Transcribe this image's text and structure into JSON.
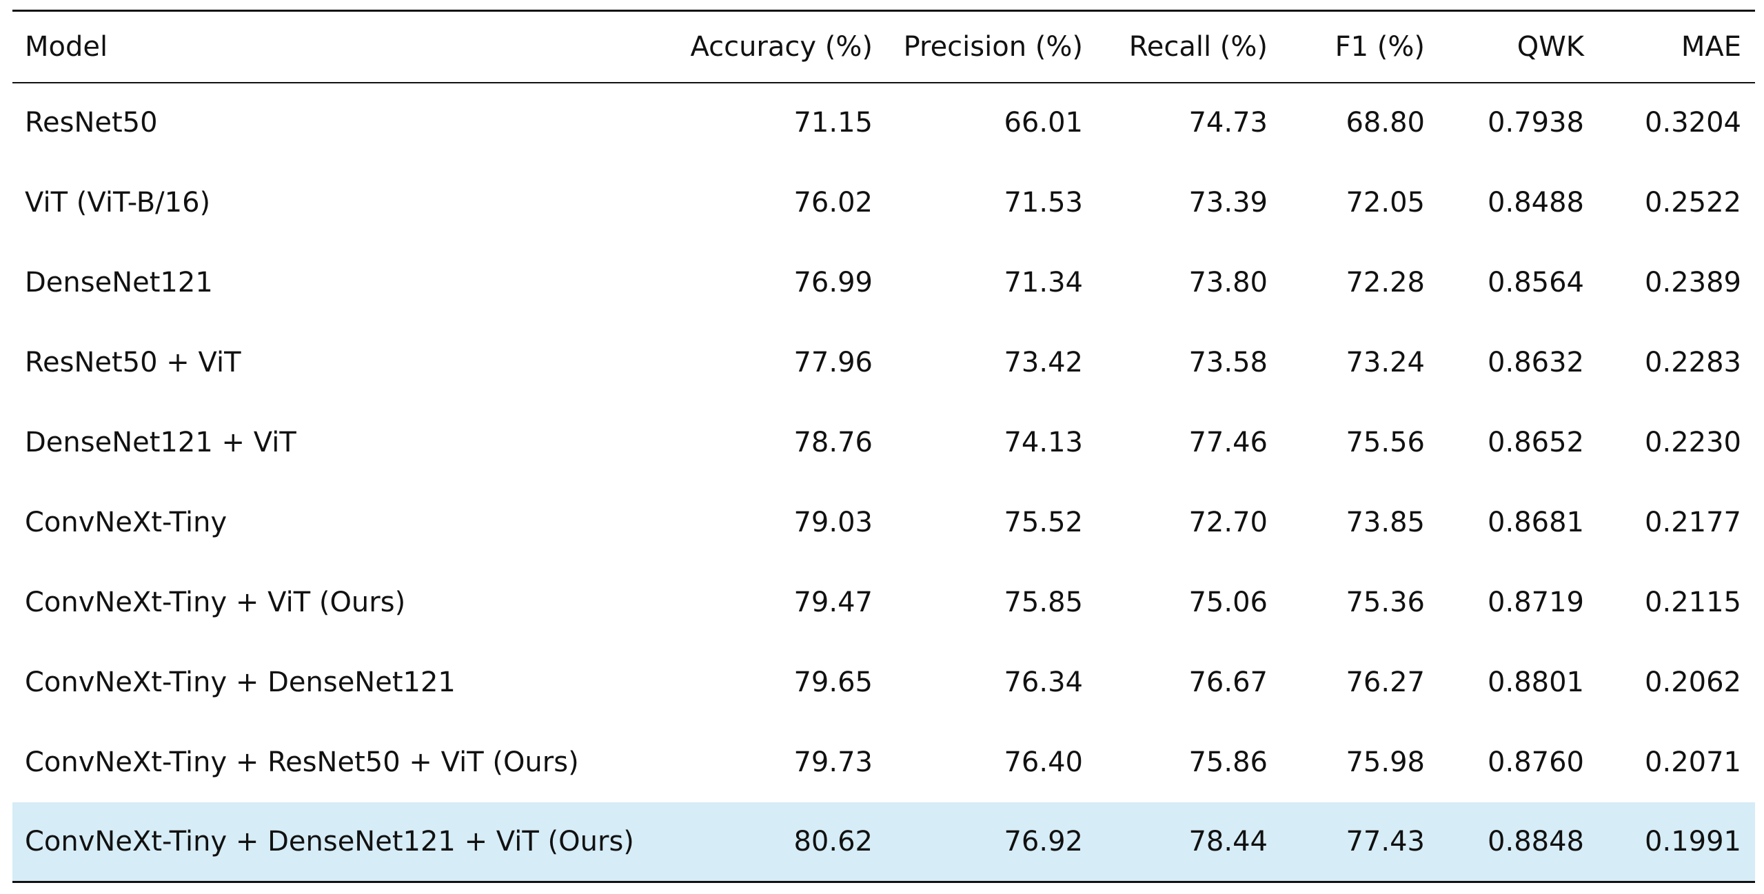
{
  "table": {
    "headers": [
      "Model",
      "Accuracy (%)",
      "Precision (%)",
      "Recall (%)",
      "F1 (%)",
      "QWK",
      "MAE"
    ],
    "rows": [
      [
        "ResNet50",
        "71.15",
        "66.01",
        "74.73",
        "68.80",
        "0.7938",
        "0.3204"
      ],
      [
        "ViT (ViT-B/16)",
        "76.02",
        "71.53",
        "73.39",
        "72.05",
        "0.8488",
        "0.2522"
      ],
      [
        "DenseNet121",
        "76.99",
        "71.34",
        "73.80",
        "72.28",
        "0.8564",
        "0.2389"
      ],
      [
        "ResNet50 + ViT",
        "77.96",
        "73.42",
        "73.58",
        "73.24",
        "0.8632",
        "0.2283"
      ],
      [
        "DenseNet121 + ViT",
        "78.76",
        "74.13",
        "77.46",
        "75.56",
        "0.8652",
        "0.2230"
      ],
      [
        "ConvNeXt-Tiny",
        "79.03",
        "75.52",
        "72.70",
        "73.85",
        "0.8681",
        "0.2177"
      ],
      [
        "ConvNeXt-Tiny + ViT (Ours)",
        "79.47",
        "75.85",
        "75.06",
        "75.36",
        "0.8719",
        "0.2115"
      ],
      [
        "ConvNeXt-Tiny + DenseNet121",
        "79.65",
        "76.34",
        "76.67",
        "76.27",
        "0.8801",
        "0.2062"
      ],
      [
        "ConvNeXt-Tiny + ResNet50 + ViT (Ours)",
        "79.73",
        "76.40",
        "75.86",
        "75.98",
        "0.8760",
        "0.2071"
      ],
      [
        "ConvNeXt-Tiny + DenseNet121 + ViT (Ours)",
        "80.62",
        "76.92",
        "78.44",
        "77.43",
        "0.8848",
        "0.1991"
      ]
    ],
    "highlight_color": "#d6ecf6",
    "rule_color": "#111111"
  }
}
